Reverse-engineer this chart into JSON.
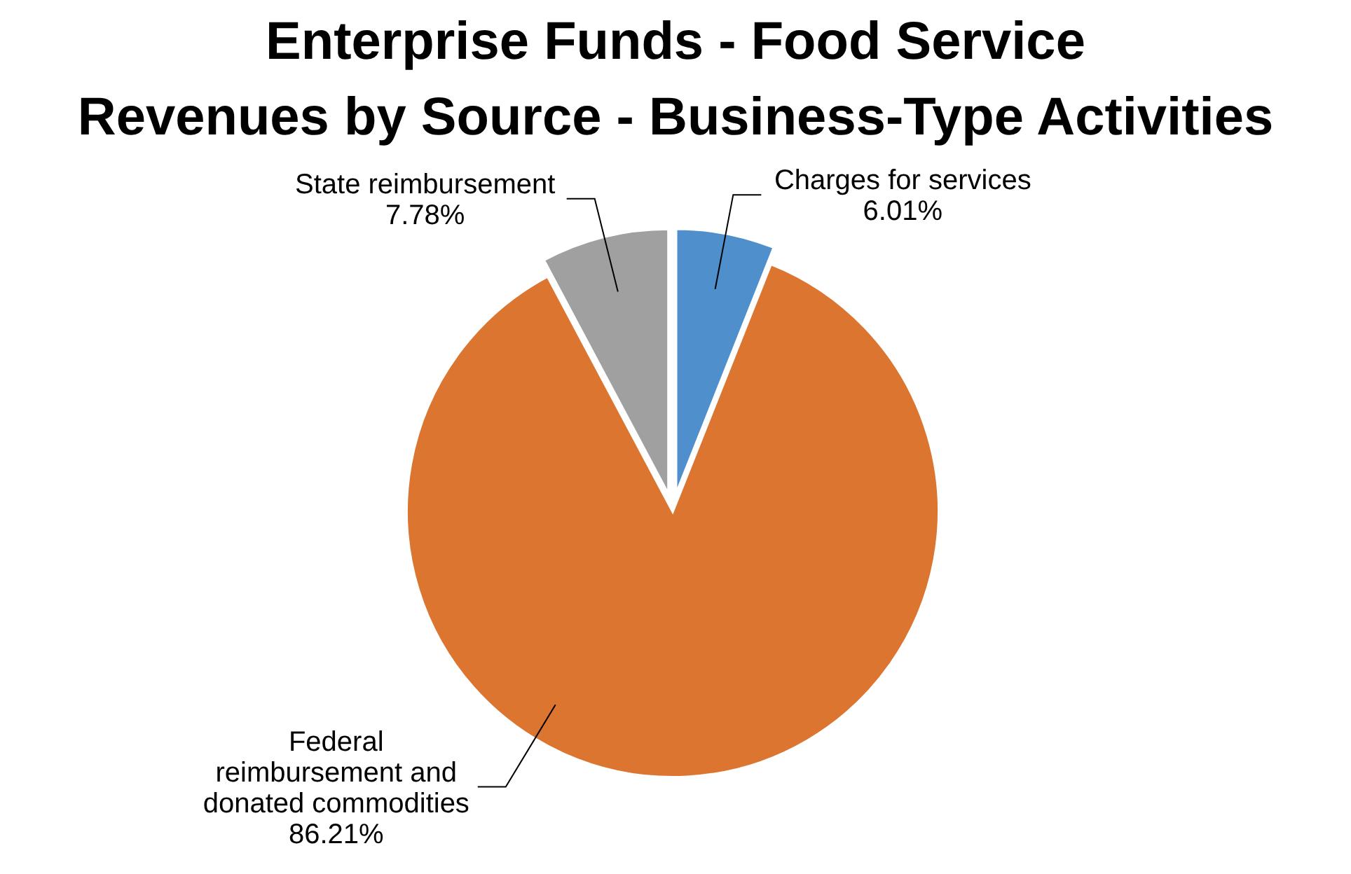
{
  "chart_data": {
    "type": "pie",
    "title": "Enterprise Funds - Food Service Revenues by Source - Business-Type Activities",
    "categories": [
      "Charges for services",
      "Federal reimbursement and donated commodities",
      "State reimbursement"
    ],
    "values": [
      6.01,
      86.21,
      7.78
    ],
    "colors": [
      "#4f8fcb",
      "#dc752f",
      "#a0a0a0"
    ],
    "value_labels": [
      "6.01%",
      "86.21%",
      "7.78%"
    ]
  }
}
